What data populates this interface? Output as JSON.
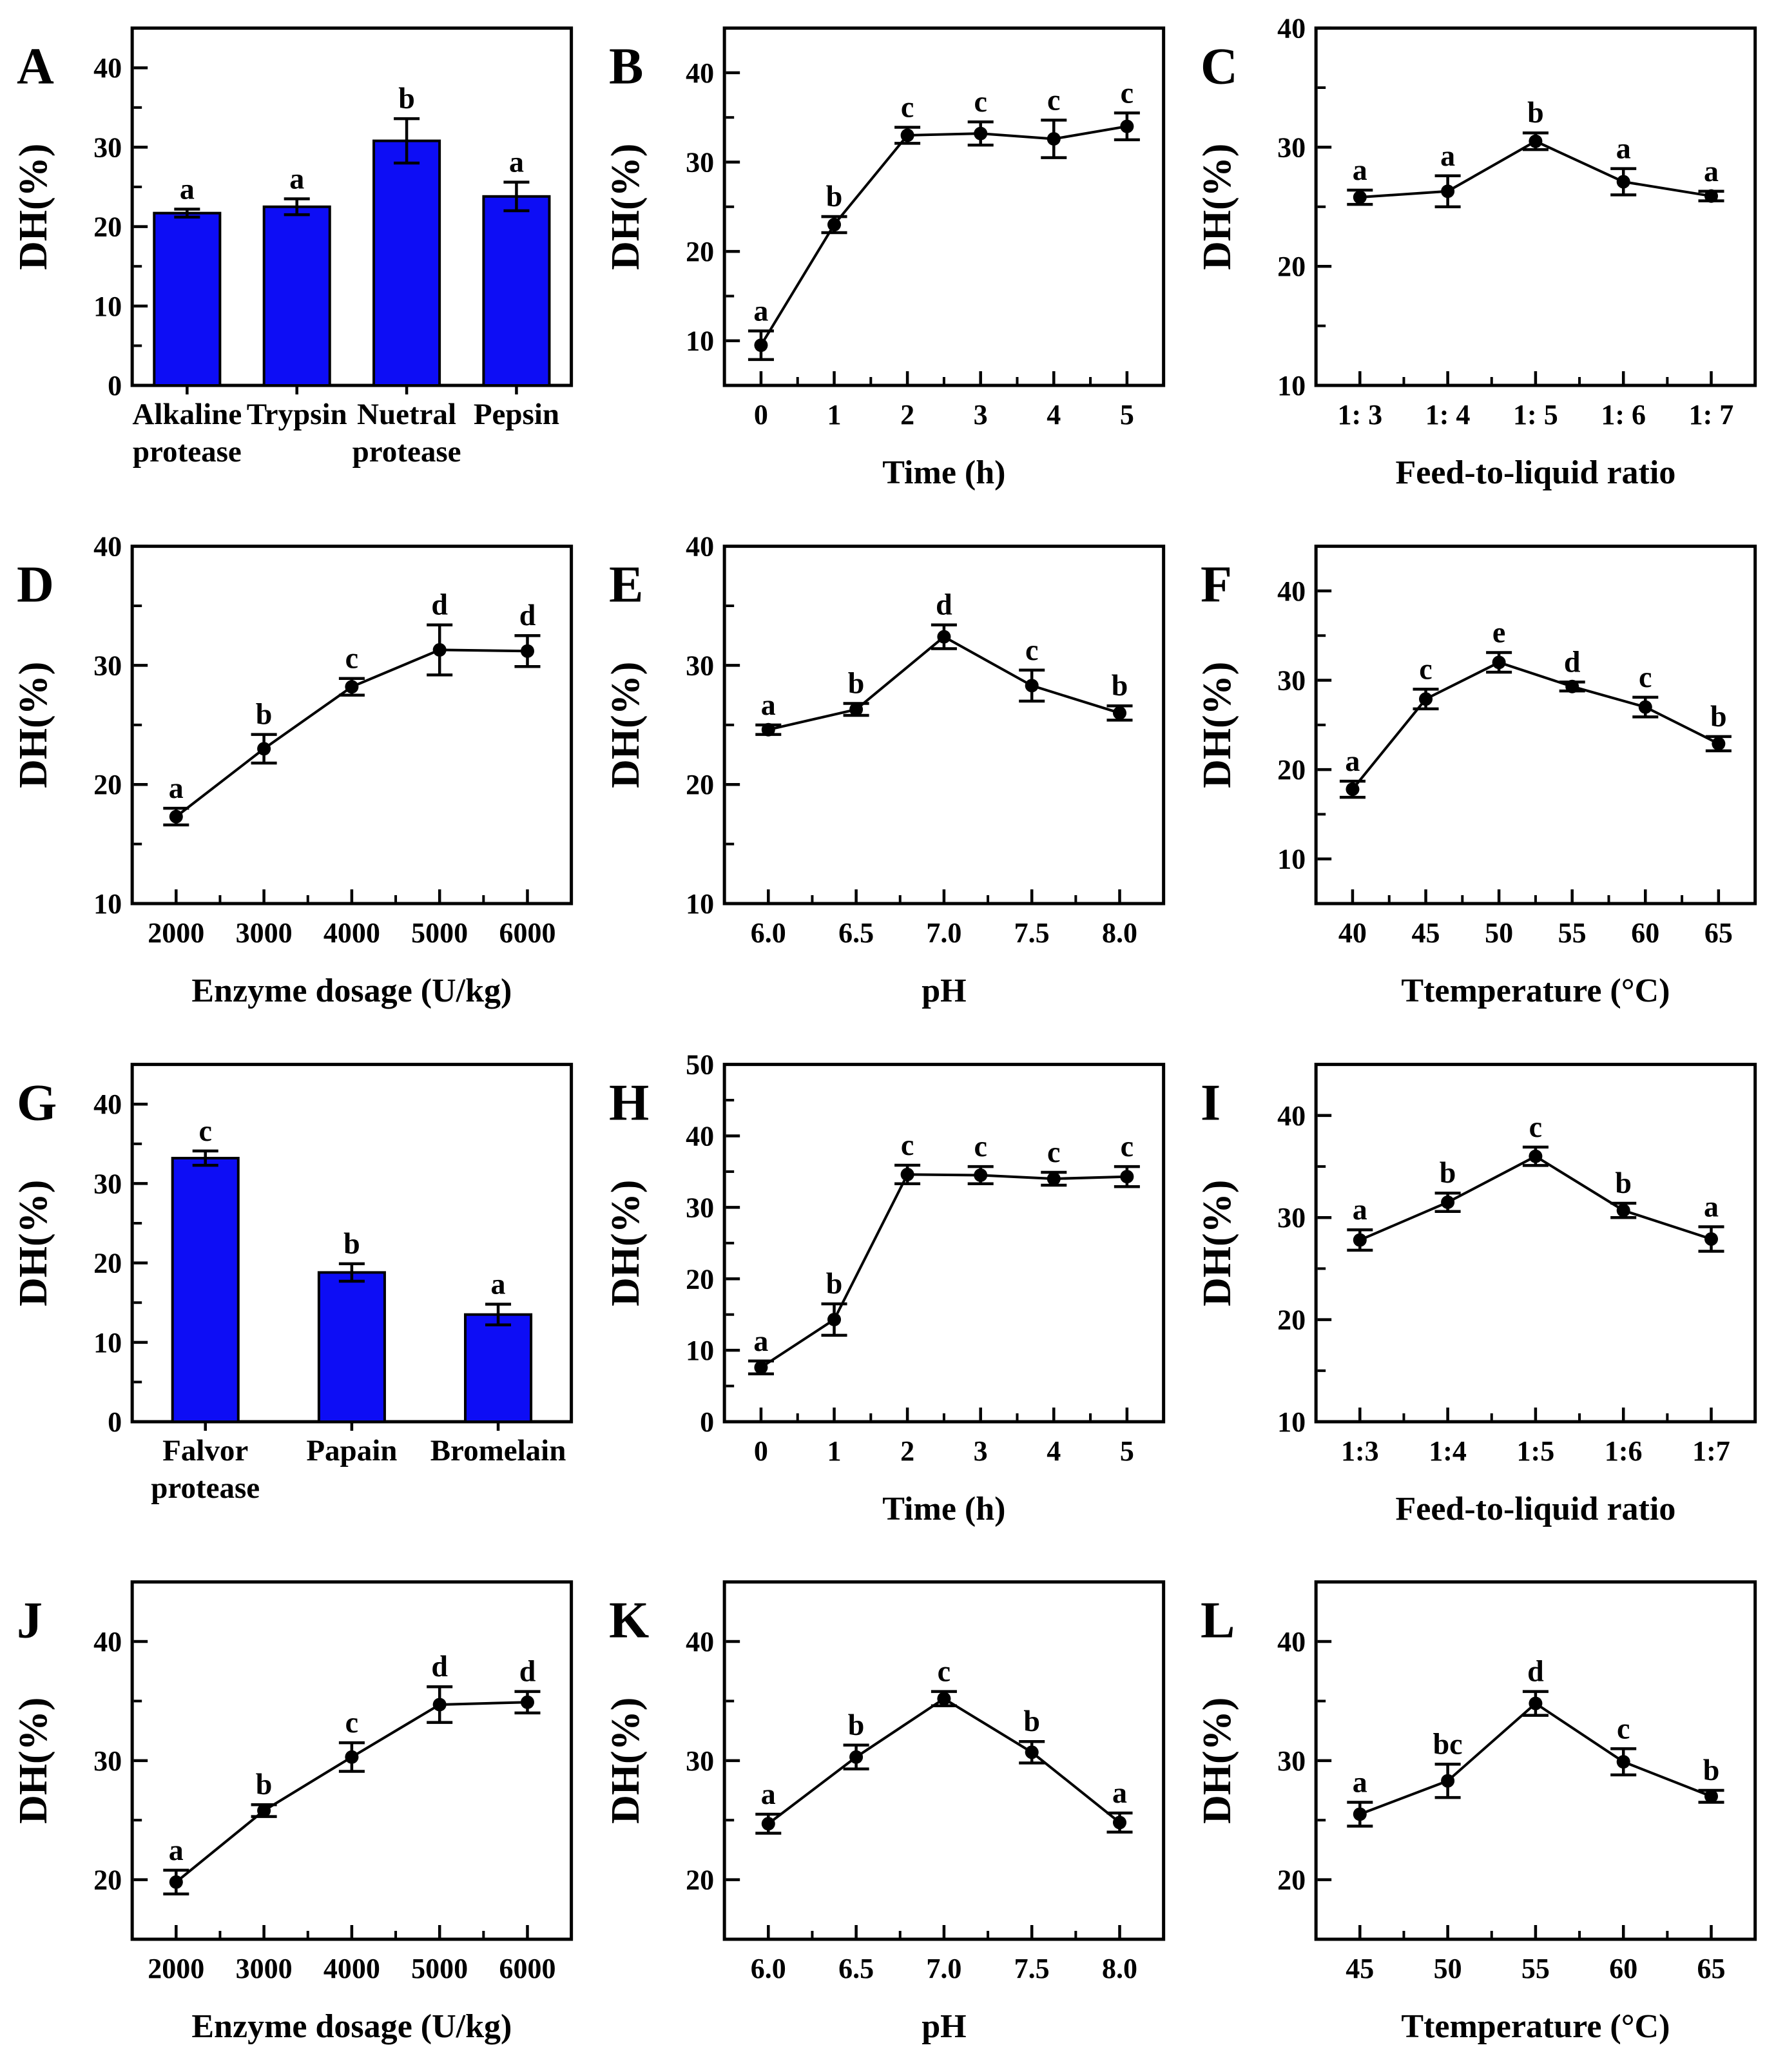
{
  "figure": {
    "ylabel": "DH(%)",
    "bar_color": "#0D0DF5",
    "axis_color": "#000000",
    "panel_ids": [
      "A",
      "B",
      "C",
      "D",
      "E",
      "F",
      "G",
      "H",
      "I",
      "J",
      "K",
      "L"
    ]
  },
  "chart_data": [
    {
      "id": "A",
      "type": "bar",
      "ylabel": "DH(%)",
      "xlabel": "",
      "categories": [
        "Alkaline\nprotease",
        "Trypsin",
        "Nuetral\nprotease",
        "Pepsin"
      ],
      "values": [
        21.7,
        22.5,
        30.8,
        23.8
      ],
      "errors": [
        0.5,
        1.0,
        2.8,
        1.8
      ],
      "letters": [
        "a",
        "a",
        "b",
        "a"
      ],
      "ylim": [
        0,
        45
      ],
      "yticks": [
        0,
        10,
        20,
        30,
        40
      ],
      "bar_color": "#0D0DF5",
      "legend": "none",
      "grid": "off"
    },
    {
      "id": "B",
      "type": "line",
      "ylabel": "DH(%)",
      "xlabel": "Time (h)",
      "categories": [
        "0",
        "1",
        "2",
        "3",
        "4",
        "5"
      ],
      "values": [
        9.5,
        23.0,
        33.0,
        33.2,
        32.6,
        34.0
      ],
      "errors": [
        1.6,
        0.9,
        0.9,
        1.3,
        2.1,
        1.5
      ],
      "letters": [
        "a",
        "b",
        "c",
        "c",
        "c",
        "c"
      ],
      "ylim": [
        5,
        45
      ],
      "yticks": [
        10,
        20,
        30,
        40
      ],
      "legend": "none",
      "grid": "off"
    },
    {
      "id": "C",
      "type": "line",
      "ylabel": "DH(%)",
      "xlabel": "Feed-to-liquid ratio",
      "categories": [
        "1: 3",
        "1: 4",
        "1: 5",
        "1: 6",
        "1: 7"
      ],
      "values": [
        25.8,
        26.3,
        30.5,
        27.1,
        25.9
      ],
      "errors": [
        0.6,
        1.3,
        0.7,
        1.1,
        0.4
      ],
      "letters": [
        "a",
        "a",
        "b",
        "a",
        "a"
      ],
      "ylim": [
        10,
        40
      ],
      "yticks": [
        10,
        20,
        30,
        40
      ],
      "legend": "none",
      "grid": "off"
    },
    {
      "id": "D",
      "type": "line",
      "ylabel": "DH(%)",
      "xlabel": "Enzyme dosage (U/kg)",
      "categories": [
        "2000",
        "3000",
        "4000",
        "5000",
        "6000"
      ],
      "values": [
        17.3,
        23.0,
        28.2,
        31.3,
        31.2
      ],
      "errors": [
        0.7,
        1.2,
        0.7,
        2.1,
        1.3
      ],
      "letters": [
        "a",
        "b",
        "c",
        "d",
        "d"
      ],
      "ylim": [
        10,
        40
      ],
      "yticks": [
        10,
        20,
        30,
        40
      ],
      "legend": "none",
      "grid": "off"
    },
    {
      "id": "E",
      "type": "line",
      "ylabel": "DH(%)",
      "xlabel": "pH",
      "categories": [
        "6.0",
        "6.5",
        "7.0",
        "7.5",
        "8.0"
      ],
      "values": [
        24.6,
        26.3,
        32.4,
        28.3,
        26.0
      ],
      "errors": [
        0.4,
        0.5,
        1.0,
        1.3,
        0.6
      ],
      "letters": [
        "a",
        "b",
        "d",
        "c",
        "b"
      ],
      "ylim": [
        10,
        40
      ],
      "yticks": [
        10,
        20,
        30,
        40
      ],
      "legend": "none",
      "grid": "off"
    },
    {
      "id": "F",
      "type": "line",
      "ylabel": "DH(%)",
      "xlabel": "Ttemperature (°C)",
      "categories": [
        "40",
        "45",
        "50",
        "55",
        "60",
        "65"
      ],
      "values": [
        17.8,
        27.9,
        32.0,
        29.3,
        27.0,
        22.9
      ],
      "errors": [
        0.9,
        1.1,
        1.1,
        0.5,
        1.1,
        0.8
      ],
      "letters": [
        "a",
        "c",
        "e",
        "d",
        "c",
        "b"
      ],
      "ylim": [
        5,
        45
      ],
      "yticks": [
        10,
        20,
        30,
        40
      ],
      "legend": "none",
      "grid": "off"
    },
    {
      "id": "G",
      "type": "bar",
      "ylabel": "DH(%)",
      "xlabel": "",
      "categories": [
        "Falvor\nprotease",
        "Papain",
        "Bromelain"
      ],
      "values": [
        33.2,
        18.8,
        13.5
      ],
      "errors": [
        0.9,
        1.1,
        1.3
      ],
      "letters": [
        "c",
        "b",
        "a"
      ],
      "ylim": [
        0,
        45
      ],
      "yticks": [
        0,
        10,
        20,
        30,
        40
      ],
      "bar_color": "#0D0DF5",
      "legend": "none",
      "grid": "off"
    },
    {
      "id": "H",
      "type": "line",
      "ylabel": "DH(%)",
      "xlabel": "Time (h)",
      "categories": [
        "0",
        "1",
        "2",
        "3",
        "4",
        "5"
      ],
      "values": [
        7.6,
        14.3,
        34.6,
        34.5,
        34.0,
        34.3
      ],
      "errors": [
        0.9,
        2.2,
        1.3,
        1.2,
        0.9,
        1.4
      ],
      "letters": [
        "a",
        "b",
        "c",
        "c",
        "c",
        "c"
      ],
      "ylim": [
        0,
        50
      ],
      "yticks": [
        0,
        10,
        20,
        30,
        40,
        50
      ],
      "legend": "none",
      "grid": "off"
    },
    {
      "id": "I",
      "type": "line",
      "ylabel": "DH(%)",
      "xlabel": "Feed-to-liquid ratio",
      "categories": [
        "1:3",
        "1:4",
        "1:5",
        "1:6",
        "1:7"
      ],
      "values": [
        27.8,
        31.5,
        36.0,
        30.7,
        27.9
      ],
      "errors": [
        1.0,
        0.9,
        0.9,
        0.7,
        1.2
      ],
      "letters": [
        "a",
        "b",
        "c",
        "b",
        "a"
      ],
      "ylim": [
        10,
        45
      ],
      "yticks": [
        10,
        20,
        30,
        40
      ],
      "legend": "none",
      "grid": "off"
    },
    {
      "id": "J",
      "type": "line",
      "ylabel": "DH(%)",
      "xlabel": "Enzyme dosage (U/kg)",
      "categories": [
        "2000",
        "3000",
        "4000",
        "5000",
        "6000"
      ],
      "values": [
        19.8,
        25.8,
        30.3,
        34.7,
        34.9
      ],
      "errors": [
        1.0,
        0.5,
        1.2,
        1.5,
        0.9
      ],
      "letters": [
        "a",
        "b",
        "c",
        "d",
        "d"
      ],
      "ylim": [
        15,
        45
      ],
      "yticks": [
        20,
        30,
        40
      ],
      "legend": "none",
      "grid": "off"
    },
    {
      "id": "K",
      "type": "line",
      "ylabel": "DH(%)",
      "xlabel": "pH",
      "categories": [
        "6.0",
        "6.5",
        "7.0",
        "7.5",
        "8.0"
      ],
      "values": [
        24.7,
        30.3,
        35.2,
        30.7,
        24.8
      ],
      "errors": [
        0.8,
        1.0,
        0.6,
        0.9,
        0.8
      ],
      "letters": [
        "a",
        "b",
        "c",
        "b",
        "a"
      ],
      "ylim": [
        15,
        45
      ],
      "yticks": [
        20,
        30,
        40
      ],
      "legend": "none",
      "grid": "off"
    },
    {
      "id": "L",
      "type": "line",
      "ylabel": "DH(%)",
      "xlabel": "Ttemperature (°C)",
      "categories": [
        "45",
        "50",
        "55",
        "60",
        "65"
      ],
      "values": [
        25.5,
        28.3,
        34.8,
        29.9,
        27.0
      ],
      "errors": [
        1.0,
        1.4,
        1.0,
        1.1,
        0.5
      ],
      "letters": [
        "a",
        "bc",
        "d",
        "c",
        "b"
      ],
      "ylim": [
        15,
        45
      ],
      "yticks": [
        20,
        30,
        40
      ],
      "legend": "none",
      "grid": "off"
    }
  ]
}
